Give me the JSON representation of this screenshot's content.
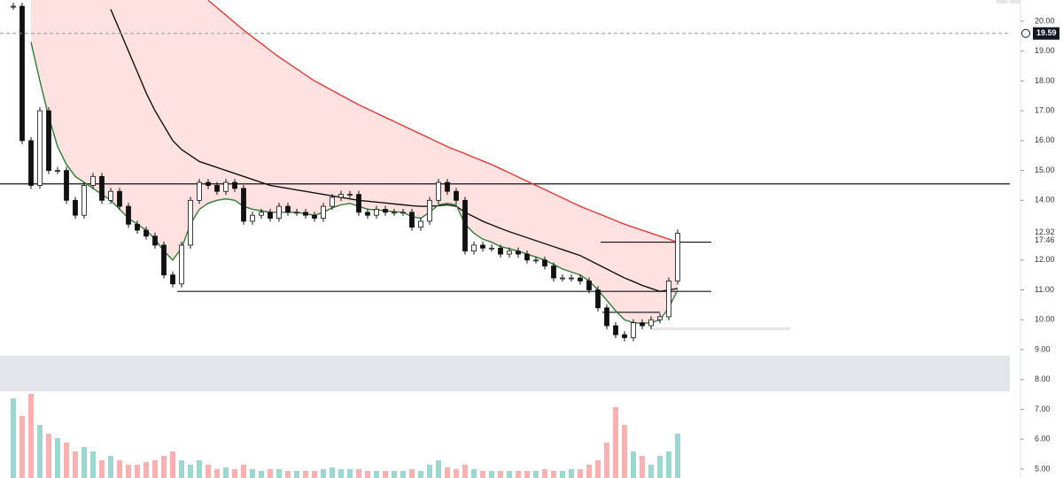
{
  "chart_data": {
    "type": "candlestick",
    "x": [
      0,
      1,
      2,
      3,
      4,
      5,
      6,
      7,
      8,
      9,
      10,
      11,
      12,
      13,
      14,
      15,
      16,
      17,
      18,
      19,
      20,
      21,
      22,
      23,
      24,
      25,
      26,
      27,
      28,
      29,
      30,
      31,
      32,
      33,
      34,
      35,
      36,
      37,
      38,
      39,
      40,
      41,
      42,
      43,
      44,
      45,
      46,
      47,
      48,
      49,
      50,
      51,
      52,
      53,
      54,
      55,
      56,
      57,
      58,
      59,
      60,
      61,
      62,
      63,
      64,
      65,
      66,
      67,
      68,
      69,
      70,
      71,
      72,
      73,
      74,
      75
    ],
    "xlim": [
      -1.5,
      112.5
    ],
    "ylim": [
      4.7,
      20.71
    ],
    "yticks": [
      {
        "value": 20,
        "label": "20.00"
      },
      {
        "value": 19,
        "label": "19.00"
      },
      {
        "value": 18,
        "label": "18.00"
      },
      {
        "value": 17,
        "label": "17.00"
      },
      {
        "value": 16,
        "label": "16.00"
      },
      {
        "value": 15,
        "label": "15.00"
      },
      {
        "value": 14,
        "label": "14.00"
      },
      {
        "value": 12,
        "label": "12.00"
      },
      {
        "value": 11,
        "label": "11.00"
      },
      {
        "value": 10,
        "label": "10.00"
      },
      {
        "value": 9,
        "label": "9.00"
      },
      {
        "value": 8,
        "label": "8.00"
      },
      {
        "value": 7,
        "label": "7.00"
      },
      {
        "value": 6,
        "label": "6.00"
      },
      {
        "value": 5,
        "label": "5.00"
      }
    ],
    "closes": [
      20.5,
      16,
      14.5,
      17,
      15,
      15,
      14,
      13.5,
      14.5,
      14.8,
      14,
      14.3,
      13.8,
      13.2,
      13,
      12.8,
      12.5,
      11.5,
      11.2,
      12.5,
      14,
      14.6,
      14.5,
      14.3,
      14.6,
      14.4,
      13.3,
      13.5,
      13.6,
      13.4,
      13.8,
      13.6,
      13.6,
      13.5,
      13.4,
      13.8,
      14.1,
      14.2,
      14.2,
      13.6,
      13.5,
      13.7,
      13.6,
      13.6,
      13.6,
      13.1,
      13.3,
      14,
      14.6,
      14.3,
      14,
      12.3,
      12.5,
      12.4,
      12.4,
      12.2,
      12.3,
      12.2,
      12,
      12,
      11.8,
      11.4,
      11.4,
      11.4,
      11.3,
      11,
      10.4,
      9.8,
      9.5,
      9.4,
      9.9,
      9.8,
      10,
      10.1,
      11.3,
      12.9
    ],
    "series": [
      {
        "color": "#e53935",
        "values": [
          null,
          null,
          null,
          null,
          null,
          null,
          null,
          null,
          null,
          null,
          null,
          null,
          null,
          null,
          null,
          null,
          null,
          null,
          null,
          null,
          null,
          null,
          20.7,
          20.45,
          20.2,
          19.95,
          19.7,
          19.47,
          19.25,
          19.02,
          18.8,
          18.6,
          18.4,
          18.2,
          18.0,
          17.84,
          17.68,
          17.52,
          17.36,
          17.2,
          17.06,
          16.92,
          16.78,
          16.64,
          16.5,
          16.36,
          16.22,
          16.08,
          15.94,
          15.8,
          15.68,
          15.56,
          15.44,
          15.32,
          15.2,
          15.06,
          14.92,
          14.78,
          14.64,
          14.5,
          14.36,
          14.22,
          14.08,
          13.94,
          13.8,
          13.68,
          13.56,
          13.44,
          13.32,
          13.2,
          13.1,
          13.0,
          12.9,
          12.8,
          12.7,
          12.6
        ]
      },
      {
        "color": "#111111",
        "values": [
          null,
          null,
          null,
          null,
          null,
          null,
          null,
          null,
          null,
          null,
          null,
          20.4,
          19.7,
          19.0,
          18.3,
          17.6,
          17.0,
          16.5,
          16.0,
          15.7,
          15.5,
          15.3,
          15.2,
          15.1,
          15.0,
          14.9,
          14.8,
          14.7,
          14.6,
          14.5,
          14.45,
          14.4,
          14.35,
          14.3,
          14.25,
          14.2,
          14.15,
          14.1,
          14.05,
          14.0,
          13.97,
          13.94,
          13.91,
          13.88,
          13.85,
          13.82,
          13.8,
          13.8,
          13.82,
          13.85,
          13.8,
          13.6,
          13.45,
          13.3,
          13.18,
          13.06,
          12.95,
          12.85,
          12.75,
          12.65,
          12.55,
          12.45,
          12.35,
          12.25,
          12.15,
          12.0,
          11.85,
          11.7,
          11.55,
          11.4,
          11.28,
          11.15,
          11.05,
          10.95,
          11.0,
          11.05
        ]
      },
      {
        "color": "#2e7d32",
        "values": [
          null,
          null,
          19.3,
          18,
          16.8,
          15.8,
          15.2,
          14.8,
          14.6,
          14.4,
          14.2,
          14.0,
          13.7,
          13.4,
          13.2,
          13.0,
          12.7,
          12.3,
          12.0,
          12.4,
          13.2,
          13.7,
          13.9,
          14.0,
          14.05,
          14.0,
          13.8,
          13.7,
          13.65,
          13.6,
          13.6,
          13.6,
          13.6,
          13.55,
          13.5,
          13.6,
          13.75,
          13.85,
          13.9,
          13.8,
          13.7,
          13.68,
          13.65,
          13.62,
          13.6,
          13.45,
          13.4,
          13.6,
          13.85,
          13.9,
          13.85,
          13.2,
          12.9,
          12.7,
          12.6,
          12.45,
          12.38,
          12.3,
          12.2,
          12.1,
          12.0,
          11.85,
          11.7,
          11.6,
          11.5,
          11.3,
          11.0,
          10.65,
          10.3,
          10.0,
          9.9,
          9.88,
          9.9,
          10.0,
          10.4,
          11.0
        ]
      }
    ],
    "volume": [
      90,
      70,
      95,
      60,
      50,
      45,
      40,
      30,
      35,
      30,
      20,
      25,
      20,
      15,
      15,
      18,
      20,
      25,
      30,
      20,
      15,
      20,
      15,
      10,
      12,
      10,
      15,
      10,
      8,
      10,
      10,
      8,
      8,
      8,
      8,
      10,
      12,
      10,
      10,
      10,
      8,
      8,
      8,
      8,
      8,
      10,
      8,
      15,
      20,
      12,
      10,
      15,
      10,
      8,
      8,
      8,
      8,
      8,
      8,
      8,
      10,
      8,
      8,
      10,
      10,
      15,
      20,
      40,
      80,
      60,
      30,
      25,
      15,
      25,
      30,
      50
    ],
    "vlim": [
      0,
      110
    ],
    "hlines": [
      {
        "value": 14.55
      },
      {
        "value": 12.6,
        "x": [
          66.3,
          78.8
        ]
      },
      {
        "value": 10.95,
        "x": [
          18.5,
          78.8
        ]
      },
      {
        "value": 10.25,
        "x": [
          66.5,
          73
        ]
      }
    ],
    "zones": [
      {
        "ylim": [
          7.6,
          8.8
        ]
      },
      {
        "ylim": [
          9.65,
          9.75
        ],
        "x": [
          72,
          87.7
        ]
      }
    ],
    "last_price": {
      "value": 19.59,
      "label": "19.59"
    },
    "marker": {
      "value": 12.92,
      "label": "12.92",
      "countdown": "17:46"
    }
  }
}
